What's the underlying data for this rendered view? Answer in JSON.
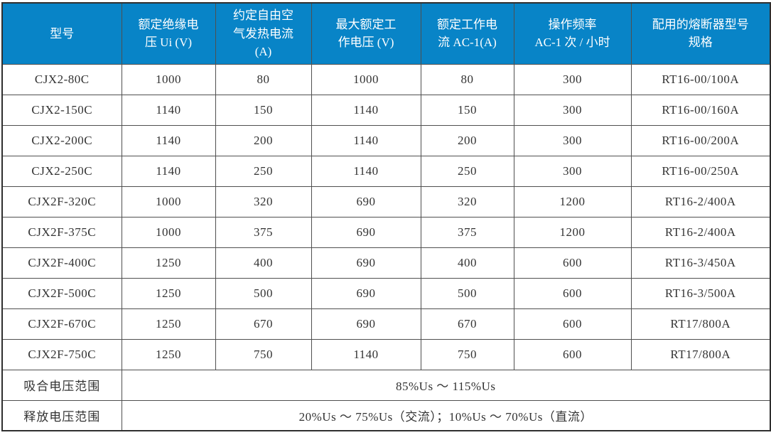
{
  "colors": {
    "header_bg": "#0884C7",
    "header_text": "#FFFFFF",
    "body_text": "#333333",
    "border": "#4F4F4F",
    "background": "#FFFFFF"
  },
  "table": {
    "columns": [
      {
        "label": "型号"
      },
      {
        "label": "额定绝缘电\n压 Ui (V)"
      },
      {
        "label": "约定自由空\n气发热电流\n(A)"
      },
      {
        "label": "最大额定工\n作电压 (V)"
      },
      {
        "label": "额定工作电\n流 AC-1(A)"
      },
      {
        "label": "操作频率\nAC-1 次 / 小时"
      },
      {
        "label": "配用的熔断器型号\n规格"
      }
    ],
    "rows": [
      [
        "CJX2-80C",
        "1000",
        "80",
        "1000",
        "80",
        "300",
        "RT16-00/100A"
      ],
      [
        "CJX2-150C",
        "1140",
        "150",
        "1140",
        "150",
        "300",
        "RT16-00/160A"
      ],
      [
        "CJX2-200C",
        "1140",
        "200",
        "1140",
        "200",
        "300",
        "RT16-00/200A"
      ],
      [
        "CJX2-250C",
        "1140",
        "250",
        "1140",
        "250",
        "300",
        "RT16-00/250A"
      ],
      [
        "CJX2F-320C",
        "1000",
        "320",
        "690",
        "320",
        "1200",
        "RT16-2/400A"
      ],
      [
        "CJX2F-375C",
        "1000",
        "375",
        "690",
        "375",
        "1200",
        "RT16-2/400A"
      ],
      [
        "CJX2F-400C",
        "1250",
        "400",
        "690",
        "400",
        "600",
        "RT16-3/450A"
      ],
      [
        "CJX2F-500C",
        "1250",
        "500",
        "690",
        "500",
        "600",
        "RT16-3/500A"
      ],
      [
        "CJX2F-670C",
        "1250",
        "670",
        "690",
        "670",
        "600",
        "RT17/800A"
      ],
      [
        "CJX2F-750C",
        "1250",
        "750",
        "1140",
        "750",
        "600",
        "RT17/800A"
      ]
    ],
    "footer_rows": [
      {
        "label": "吸合电压范围",
        "value": "85%Us ～ 115%Us"
      },
      {
        "label": "释放电压范围",
        "value": "20%Us ～ 75%Us（交流）；10%Us ～ 70%Us（直流）"
      }
    ]
  }
}
